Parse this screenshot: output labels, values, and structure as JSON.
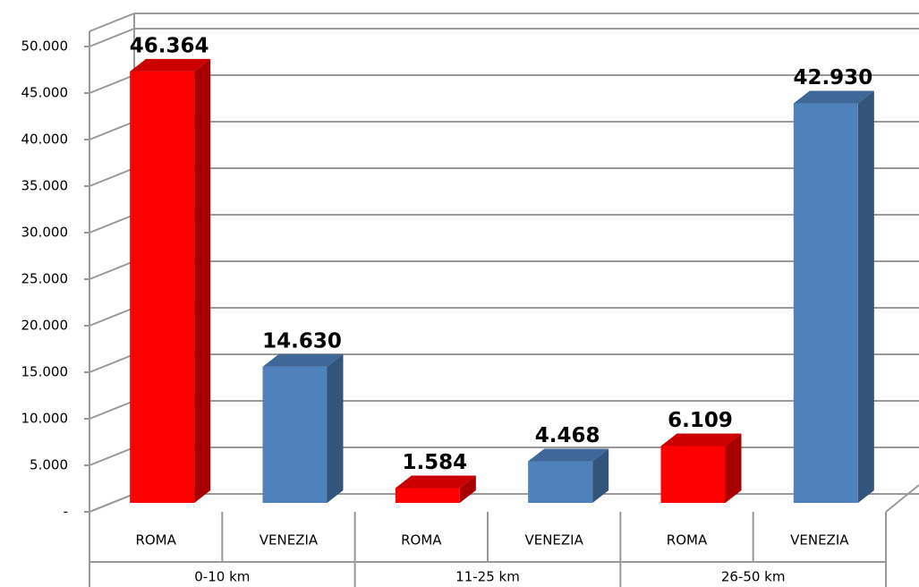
{
  "chart_data": {
    "type": "bar3d",
    "categories": [
      "ROMA",
      "VENEZIA",
      "ROMA",
      "VENEZIA",
      "ROMA",
      "VENEZIA"
    ],
    "groups": [
      "0-10 km",
      "11-25 km",
      "26-50 km"
    ],
    "values": [
      46364,
      14630,
      1584,
      4468,
      6109,
      42930
    ],
    "value_labels": [
      "46.364",
      "14.630",
      "1.584",
      "4.468",
      "6.109",
      "42.930"
    ],
    "colors": [
      "#ff0000",
      "#4f81bd",
      "#ff0000",
      "#4f81bd",
      "#ff0000",
      "#4f81bd"
    ],
    "ylim": [
      0,
      50000
    ],
    "yticks": [
      {
        "value": 0,
        "label": "-"
      },
      {
        "value": 5000,
        "label": "5.000"
      },
      {
        "value": 10000,
        "label": "10.000"
      },
      {
        "value": 15000,
        "label": "15.000"
      },
      {
        "value": 20000,
        "label": "20.000"
      },
      {
        "value": 25000,
        "label": "25.000"
      },
      {
        "value": 30000,
        "label": "30.000"
      },
      {
        "value": 35000,
        "label": "35.000"
      },
      {
        "value": 40000,
        "label": "40.000"
      },
      {
        "value": 45000,
        "label": "45.000"
      },
      {
        "value": 50000,
        "label": "50.000"
      }
    ],
    "grid": true
  }
}
